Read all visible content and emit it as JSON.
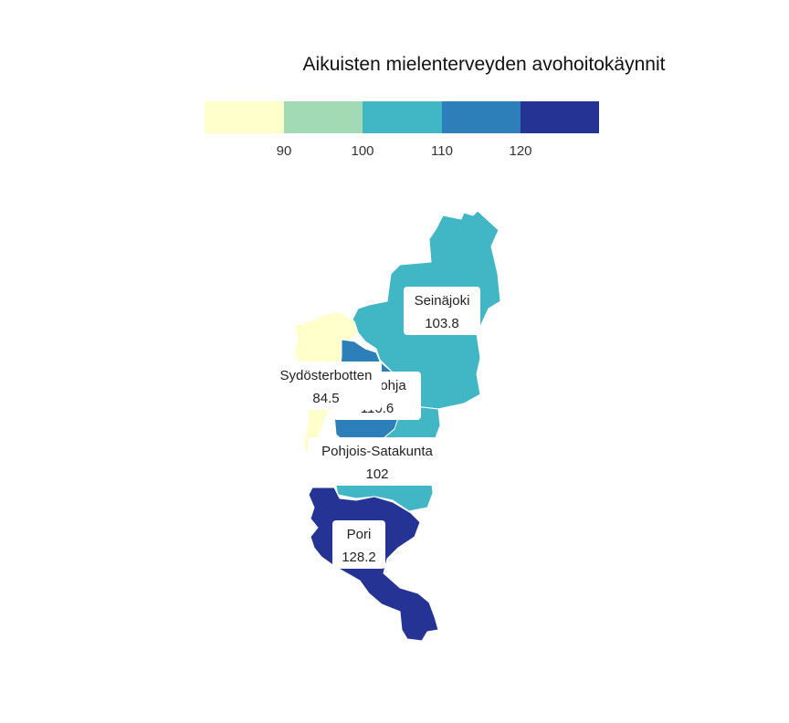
{
  "legend": {
    "title": "Aikuisten mielenterveyden avohoitokäynnit",
    "ticks": [
      "90",
      "100",
      "110",
      "120"
    ],
    "colors": [
      "#ffffcc",
      "#a1dab4",
      "#41b6c4",
      "#2c7fb8",
      "#253494"
    ]
  },
  "regions": [
    {
      "id": "seinajoki",
      "name": "Seinäjoki",
      "value": "103.8",
      "color": "#41b6c4"
    },
    {
      "id": "pohjois-satakunta",
      "name": "Pohjois-Satakunta",
      "value": "102",
      "color": "#41b6c4"
    },
    {
      "id": "suupohja",
      "name": "Suupohja",
      "value": "110.6",
      "color": "#2c7fb8"
    },
    {
      "id": "sydosterbotten",
      "name": "Sydösterbotten",
      "value": "84.5",
      "color": "#ffffcc"
    },
    {
      "id": "pori",
      "name": "Pori",
      "value": "128.2",
      "color": "#253494"
    }
  ]
}
